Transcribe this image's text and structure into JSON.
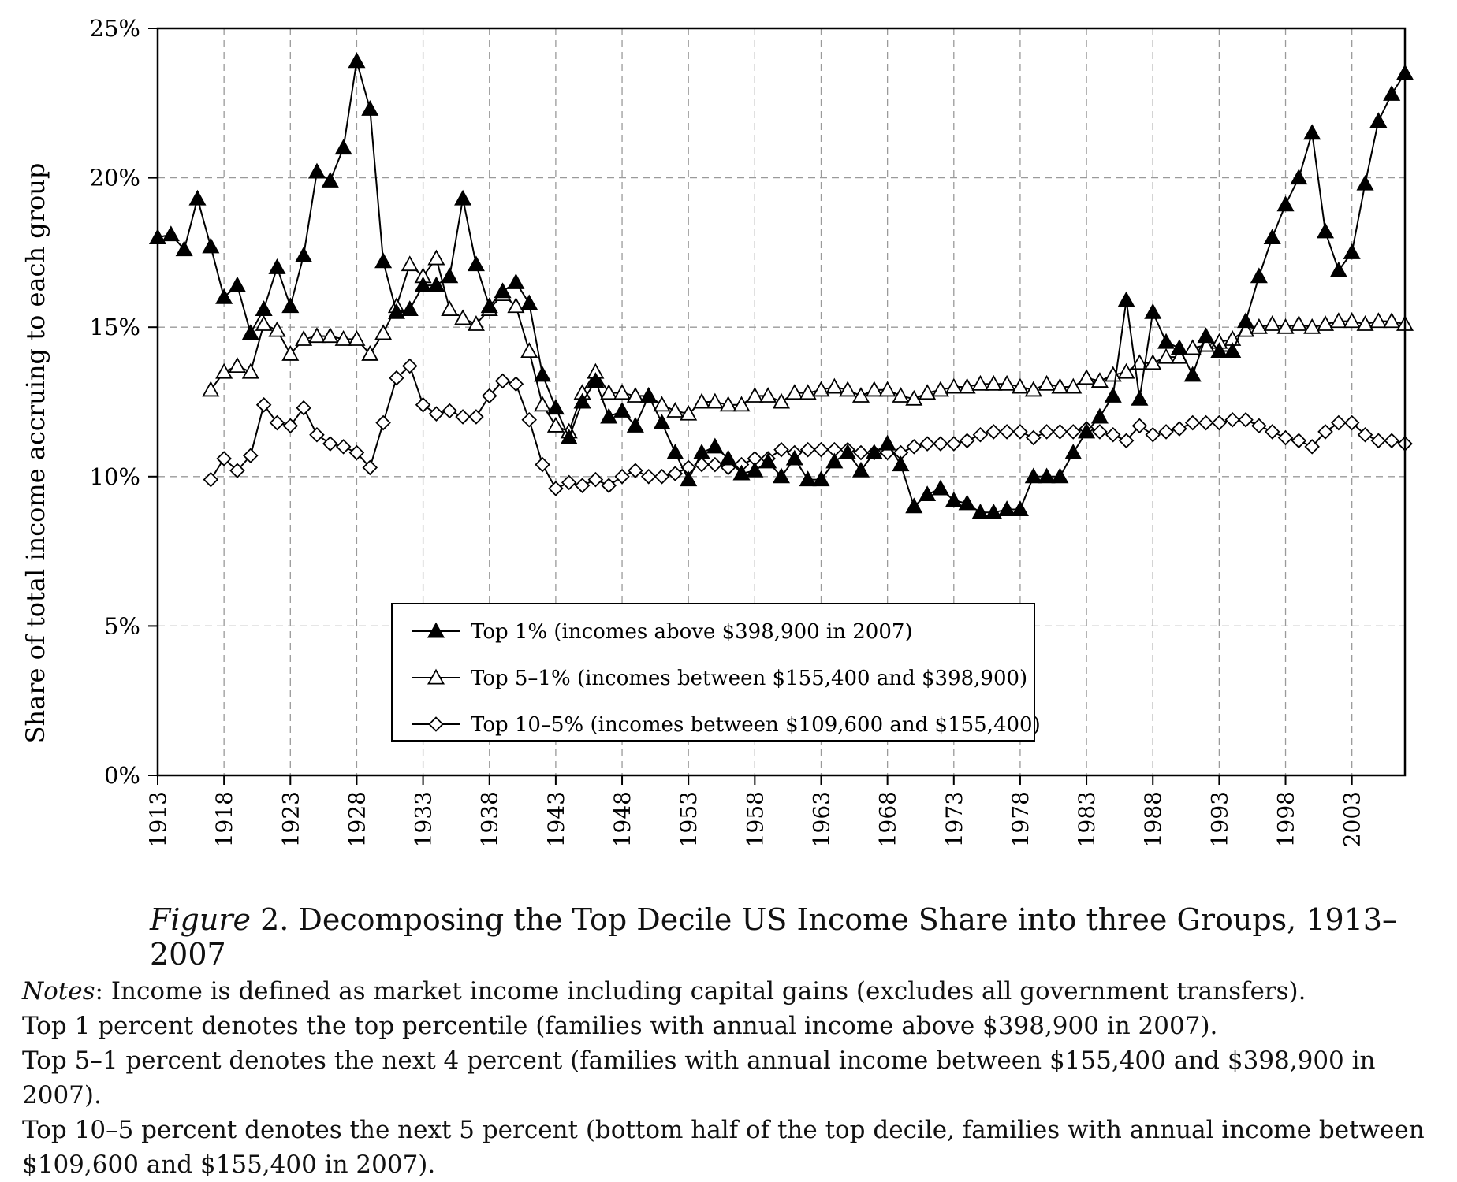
{
  "chart_data": {
    "type": "line",
    "ylabel": "Share of total income accruing to each group",
    "ylim": [
      0,
      25
    ],
    "xlim": [
      1913,
      2007
    ],
    "y_ticks": [
      "0%",
      "5%",
      "10%",
      "15%",
      "20%",
      "25%"
    ],
    "x_ticks": [
      "1913",
      "1918",
      "1923",
      "1928",
      "1933",
      "1938",
      "1943",
      "1948",
      "1953",
      "1958",
      "1963",
      "1968",
      "1973",
      "1978",
      "1983",
      "1988",
      "1993",
      "1998",
      "2003"
    ],
    "grid": true,
    "legend_position": "bottom-center",
    "x": [
      1913,
      1914,
      1915,
      1916,
      1917,
      1918,
      1919,
      1920,
      1921,
      1922,
      1923,
      1924,
      1925,
      1926,
      1927,
      1928,
      1929,
      1930,
      1931,
      1932,
      1933,
      1934,
      1935,
      1936,
      1937,
      1938,
      1939,
      1940,
      1941,
      1942,
      1943,
      1944,
      1945,
      1946,
      1947,
      1948,
      1949,
      1950,
      1951,
      1952,
      1953,
      1954,
      1955,
      1956,
      1957,
      1958,
      1959,
      1960,
      1961,
      1962,
      1963,
      1964,
      1965,
      1966,
      1967,
      1968,
      1969,
      1970,
      1971,
      1972,
      1973,
      1974,
      1975,
      1976,
      1977,
      1978,
      1979,
      1980,
      1981,
      1982,
      1983,
      1984,
      1985,
      1986,
      1987,
      1988,
      1989,
      1990,
      1991,
      1992,
      1993,
      1994,
      1995,
      1996,
      1997,
      1998,
      1999,
      2000,
      2001,
      2002,
      2003,
      2004,
      2005,
      2006,
      2007
    ],
    "series": [
      {
        "name": "Top 1% (incomes above $398,900 in 2007)",
        "marker": "filled-triangle",
        "values": [
          18.0,
          18.1,
          17.6,
          19.3,
          17.7,
          16.0,
          16.4,
          14.8,
          15.6,
          17.0,
          15.7,
          17.4,
          20.2,
          19.9,
          21.0,
          23.9,
          22.3,
          17.2,
          15.5,
          15.6,
          16.4,
          16.4,
          16.7,
          19.3,
          17.1,
          15.7,
          16.2,
          16.5,
          15.8,
          13.4,
          12.3,
          11.3,
          12.5,
          13.2,
          12.0,
          12.2,
          11.7,
          12.7,
          11.8,
          10.8,
          9.9,
          10.8,
          11.0,
          10.6,
          10.1,
          10.2,
          10.5,
          10.0,
          10.6,
          9.9,
          9.9,
          10.5,
          10.8,
          10.2,
          10.8,
          11.1,
          10.4,
          9.0,
          9.4,
          9.6,
          9.2,
          9.1,
          8.8,
          8.8,
          8.9,
          8.9,
          10.0,
          10.0,
          10.0,
          10.8,
          11.5,
          12.0,
          12.7,
          15.9,
          12.6,
          15.5,
          14.5,
          14.3,
          13.4,
          14.7,
          14.2,
          14.2,
          15.2,
          16.7,
          18.0,
          19.1,
          20.0,
          21.5,
          18.2,
          16.9,
          17.5,
          19.8,
          21.9,
          22.8,
          23.5
        ]
      },
      {
        "name": "Top 5–1% (incomes between $155,400 and $398,900)",
        "marker": "open-triangle",
        "values": [
          null,
          null,
          null,
          null,
          12.9,
          13.5,
          13.7,
          13.5,
          15.1,
          14.9,
          14.1,
          14.6,
          14.7,
          14.7,
          14.6,
          14.6,
          14.1,
          14.8,
          15.7,
          17.1,
          16.7,
          17.3,
          15.6,
          15.3,
          15.1,
          15.6,
          16.1,
          15.7,
          14.2,
          12.4,
          11.7,
          11.5,
          12.8,
          13.5,
          12.8,
          12.8,
          12.7,
          12.7,
          12.4,
          12.2,
          12.1,
          12.5,
          12.5,
          12.4,
          12.4,
          12.7,
          12.7,
          12.5,
          12.8,
          12.8,
          12.9,
          13.0,
          12.9,
          12.7,
          12.9,
          12.9,
          12.7,
          12.6,
          12.8,
          12.9,
          13.0,
          13.0,
          13.1,
          13.1,
          13.1,
          13.0,
          12.9,
          13.1,
          13.0,
          13.0,
          13.3,
          13.2,
          13.4,
          13.5,
          13.8,
          13.8,
          14.0,
          14.0,
          14.3,
          14.4,
          14.5,
          14.6,
          14.9,
          15.0,
          15.1,
          15.0,
          15.1,
          15.0,
          15.1,
          15.2,
          15.2,
          15.1,
          15.2,
          15.2,
          15.1
        ]
      },
      {
        "name": "Top 10–5% (incomes between $109,600 and $155,400)",
        "marker": "open-diamond",
        "values": [
          null,
          null,
          null,
          null,
          9.9,
          10.6,
          10.2,
          10.7,
          12.4,
          11.8,
          11.7,
          12.3,
          11.4,
          11.1,
          11.0,
          10.8,
          10.3,
          11.8,
          13.3,
          13.7,
          12.4,
          12.1,
          12.2,
          12.0,
          12.0,
          12.7,
          13.2,
          13.1,
          11.9,
          10.4,
          9.6,
          9.8,
          9.7,
          9.9,
          9.7,
          10.0,
          10.2,
          10.0,
          10.0,
          10.1,
          10.3,
          10.4,
          10.4,
          10.3,
          10.4,
          10.6,
          10.6,
          10.9,
          10.8,
          10.9,
          10.9,
          10.9,
          10.9,
          10.8,
          10.8,
          10.8,
          10.8,
          11.0,
          11.1,
          11.1,
          11.1,
          11.2,
          11.4,
          11.5,
          11.5,
          11.5,
          11.3,
          11.5,
          11.5,
          11.5,
          11.6,
          11.5,
          11.4,
          11.2,
          11.7,
          11.4,
          11.5,
          11.6,
          11.8,
          11.8,
          11.8,
          11.9,
          11.9,
          11.7,
          11.5,
          11.3,
          11.2,
          11.0,
          11.5,
          11.8,
          11.8,
          11.4,
          11.2,
          11.2,
          11.1
        ]
      }
    ]
  },
  "caption": {
    "figure_label": "Figure",
    "text": " 2. Decomposing the Top Decile US Income Share into three Groups, 1913–2007"
  },
  "notes": {
    "label": "Notes",
    "first_line": ": Income is defined as market income including capital gains (excludes all government transfers).",
    "lines": [
      "Top 1 percent denotes the top percentile (families with annual income above $398,900 in 2007).",
      "Top 5–1 percent denotes the next 4 percent (families with annual income between $155,400 and $398,900 in 2007).",
      "Top 10–5 percent denotes the next 5 percent (bottom half of the top decile, families with annual income between $109,600 and $155,400 in 2007)."
    ]
  }
}
